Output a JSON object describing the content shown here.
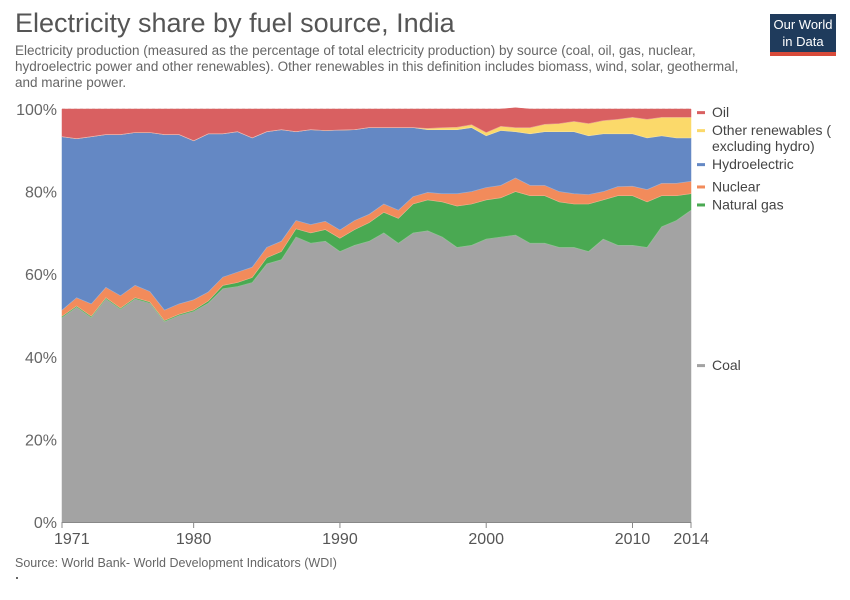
{
  "title": "Electricity share by fuel source, India",
  "subtitle": "Electricity production (measured as the percentage of total electricity production) by source (coal, oil, gas, nuclear, hydroelectric power and other renewables). Other renewables in this definition includes biomass, wind, solar, geothermal, and marine power.",
  "logo": {
    "line1": "Our World",
    "line2": "in Data"
  },
  "source": "Source: World Bank- World Development Indicators (WDI)",
  "chart_data": {
    "type": "area",
    "stacked": true,
    "title": "Electricity share by fuel source, India",
    "ylim": [
      0,
      100
    ],
    "xlim": [
      1971,
      2014
    ],
    "y_ticks": [
      {
        "value": 0,
        "label": "0%"
      },
      {
        "value": 20,
        "label": "20%"
      },
      {
        "value": 40,
        "label": "40%"
      },
      {
        "value": 60,
        "label": "60%"
      },
      {
        "value": 80,
        "label": "80%"
      },
      {
        "value": 100,
        "label": "100%"
      }
    ],
    "x_ticks": [
      {
        "value": 1971,
        "label": "1971"
      },
      {
        "value": 1980,
        "label": "1980"
      },
      {
        "value": 1990,
        "label": "1990"
      },
      {
        "value": 2000,
        "label": "2000"
      },
      {
        "value": 2010,
        "label": "2010"
      },
      {
        "value": 2014,
        "label": "2014"
      }
    ],
    "grid": "horizontal dashed",
    "legend_position": "right",
    "x": [
      1971,
      1972,
      1973,
      1974,
      1975,
      1976,
      1977,
      1978,
      1979,
      1980,
      1981,
      1982,
      1983,
      1984,
      1985,
      1986,
      1987,
      1988,
      1989,
      1990,
      1991,
      1992,
      1993,
      1994,
      1995,
      1996,
      1997,
      1998,
      1999,
      2000,
      2001,
      2002,
      2003,
      2004,
      2005,
      2006,
      2007,
      2008,
      2009,
      2010,
      2011,
      2012,
      2013,
      2014
    ],
    "series": [
      {
        "name": "Coal",
        "color": "#a3a3a3",
        "values": [
          49.5,
          52,
          49.5,
          54,
          51.5,
          54,
          53,
          48.5,
          50,
          51,
          53,
          56.5,
          57,
          58,
          62.5,
          63.5,
          69,
          67.5,
          68,
          65.5,
          67,
          68,
          70,
          67.5,
          70,
          70.5,
          69,
          66.5,
          67,
          68.5,
          69,
          69.5,
          67.5,
          67.5,
          66.5,
          66.5,
          65.5,
          68.5,
          67,
          67,
          66.5,
          71.5,
          73,
          75.5
        ]
      },
      {
        "name": "Natural gas",
        "color": "#4aa952",
        "values": [
          0.3,
          0.3,
          0.3,
          0.3,
          0.3,
          0.3,
          0.3,
          0.3,
          0.3,
          0.3,
          0.5,
          0.8,
          1,
          1.2,
          1.5,
          2,
          2,
          2.5,
          2.8,
          3.2,
          3.8,
          4.5,
          5,
          6,
          7,
          7.5,
          8.5,
          10,
          10,
          9.5,
          9.5,
          10.5,
          11.5,
          11.5,
          11,
          10.5,
          11.5,
          9.5,
          12,
          12,
          11,
          7.5,
          6,
          4
        ]
      },
      {
        "name": "Nuclear",
        "color": "#f28b5b",
        "values": [
          1.5,
          2,
          3,
          2.5,
          3,
          3,
          2.5,
          2.5,
          2.5,
          2.5,
          2.2,
          2,
          2.5,
          2.5,
          2.5,
          2.5,
          2,
          2,
          2,
          2,
          2.2,
          2,
          2,
          2,
          1.8,
          1.8,
          2,
          3,
          3,
          3,
          3,
          3.3,
          2.5,
          2.5,
          2.5,
          2.5,
          2.3,
          2,
          2.2,
          2.3,
          3,
          3,
          3,
          3
        ]
      },
      {
        "name": "Hydroelectric",
        "color": "#6488c4",
        "values": [
          42,
          38.5,
          40.5,
          37,
          39,
          37,
          38.5,
          42.5,
          41,
          38.5,
          38.3,
          34.7,
          34,
          31.3,
          28,
          27,
          21.5,
          23,
          22,
          24.2,
          22,
          21,
          18.5,
          20,
          16.7,
          15.2,
          15.5,
          15.5,
          15.5,
          12.5,
          13.3,
          11.2,
          12.5,
          13,
          14.5,
          15,
          14.2,
          14,
          12.8,
          12.7,
          12.5,
          11.5,
          11,
          10.5
        ]
      },
      {
        "name": "Other renewables ( excluding hydro)",
        "color": "#fbd96a",
        "values": [
          0,
          0,
          0,
          0,
          0,
          0,
          0,
          0,
          0,
          0,
          0,
          0,
          0,
          0,
          0,
          0,
          0,
          0,
          0,
          0,
          0,
          0,
          0,
          0,
          0,
          0.3,
          0.5,
          0.6,
          0.7,
          0.8,
          1,
          1,
          1.5,
          1.8,
          2,
          2.5,
          3,
          3.2,
          3.5,
          4,
          4.5,
          4.5,
          5,
          5
        ]
      },
      {
        "name": "Oil",
        "color": "#d96061",
        "values": [
          6.7,
          7.2,
          6.7,
          6.2,
          6.2,
          5.7,
          5.7,
          6.2,
          6.2,
          7.7,
          6,
          6,
          5.5,
          7,
          5.5,
          5,
          5.5,
          5,
          5.2,
          5.1,
          5,
          4.5,
          4.5,
          4.5,
          4.5,
          4.7,
          4.5,
          4.4,
          3.8,
          5.7,
          4.2,
          4.8,
          4.5,
          3.7,
          3.5,
          3,
          3.5,
          2.8,
          2.5,
          2,
          2.5,
          2,
          2,
          2
        ]
      }
    ]
  }
}
